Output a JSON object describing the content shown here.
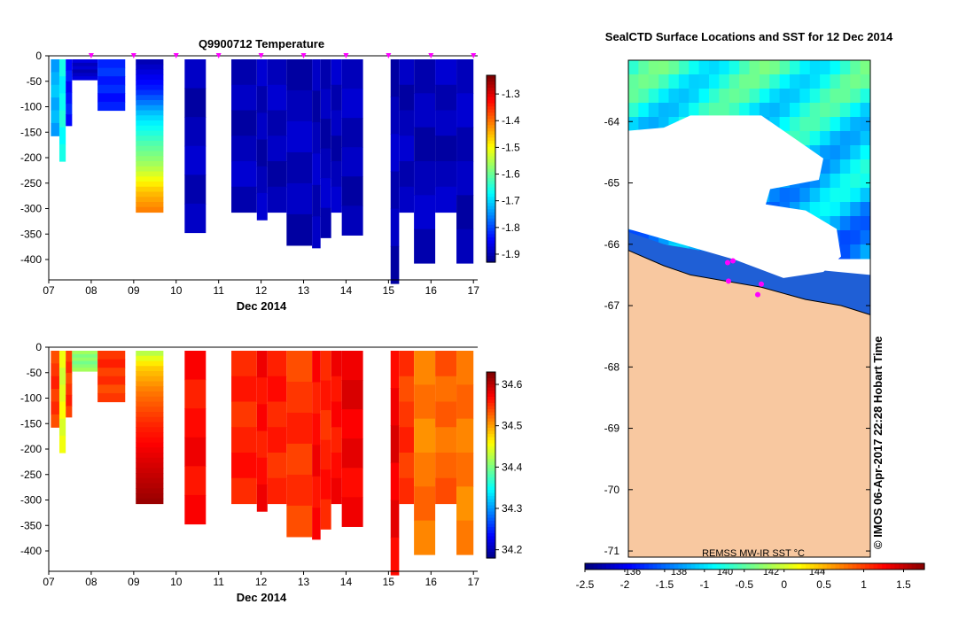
{
  "chart_data": [
    {
      "type": "heatmap",
      "id": "temperature",
      "title": "Q9900712  Temperature",
      "xlabel": "Dec 2014",
      "ylabel": "",
      "x_tick_labels": [
        "07",
        "08",
        "09",
        "10",
        "11",
        "12",
        "13",
        "14",
        "15",
        "16",
        "17"
      ],
      "xlim": [
        7,
        17.1
      ],
      "ylim": [
        -440,
        0
      ],
      "y_tick_values": [
        0,
        -50,
        -100,
        -150,
        -200,
        -250,
        -300,
        -350,
        -400
      ],
      "colorbar": {
        "min": -1.93,
        "max": -1.23,
        "ticks": [
          -1.3,
          -1.4,
          -1.5,
          -1.6,
          -1.7,
          -1.8,
          -1.9
        ]
      },
      "profile_marker_days": [
        8.0,
        9.0,
        10.0,
        11.0,
        12.0,
        13.0,
        14.0,
        15.0,
        16.0,
        17.0
      ],
      "profiles": [
        {
          "x0": 7.05,
          "x1": 7.25,
          "depth": 150,
          "value": -1.72
        },
        {
          "x0": 7.25,
          "x1": 7.4,
          "depth": 200,
          "value": -1.66
        },
        {
          "x0": 7.4,
          "x1": 7.55,
          "depth": 130,
          "value": -1.83
        },
        {
          "x0": 7.55,
          "x1": 8.15,
          "depth": 40,
          "value": -1.88
        },
        {
          "x0": 8.15,
          "x1": 8.8,
          "depth": 100,
          "value": -1.82
        },
        {
          "x0": 9.05,
          "x1": 9.7,
          "depth": 300,
          "gradient": [
            [
              0,
              -1.9
            ],
            [
              60,
              -1.82
            ],
            [
              110,
              -1.7
            ],
            [
              160,
              -1.62
            ],
            [
              210,
              -1.55
            ],
            [
              260,
              -1.45
            ],
            [
              300,
              -1.4
            ]
          ]
        },
        {
          "x0": 10.2,
          "x1": 10.7,
          "depth": 340,
          "value": -1.89
        },
        {
          "x0": 11.3,
          "x1": 11.9,
          "depth": 300,
          "value": -1.89
        },
        {
          "x0": 11.9,
          "x1": 12.15,
          "depth": 315,
          "value": -1.89
        },
        {
          "x0": 12.15,
          "x1": 12.6,
          "depth": 300,
          "value": -1.89
        },
        {
          "x0": 12.6,
          "x1": 13.2,
          "depth": 365,
          "value": -1.89
        },
        {
          "x0": 13.2,
          "x1": 13.4,
          "depth": 370,
          "value": -1.89
        },
        {
          "x0": 13.4,
          "x1": 13.65,
          "depth": 350,
          "value": -1.89
        },
        {
          "x0": 13.65,
          "x1": 13.9,
          "depth": 300,
          "value": -1.89
        },
        {
          "x0": 13.9,
          "x1": 14.4,
          "depth": 345,
          "value": -1.89
        },
        {
          "x0": 15.05,
          "x1": 15.25,
          "depth": 440,
          "value": -1.89
        },
        {
          "x0": 15.25,
          "x1": 15.6,
          "depth": 300,
          "value": -1.89
        },
        {
          "x0": 15.6,
          "x1": 16.1,
          "depth": 400,
          "value": -1.89
        },
        {
          "x0": 16.1,
          "x1": 16.6,
          "depth": 300,
          "value": -1.89
        },
        {
          "x0": 16.6,
          "x1": 17.0,
          "depth": 400,
          "value": -1.89
        }
      ]
    },
    {
      "type": "heatmap",
      "id": "salinity",
      "title": "",
      "xlabel": "Dec 2014",
      "ylabel": "",
      "x_tick_labels": [
        "07",
        "08",
        "09",
        "10",
        "11",
        "12",
        "13",
        "14",
        "15",
        "16",
        "17"
      ],
      "xlim": [
        7,
        17.1
      ],
      "ylim": [
        -440,
        0
      ],
      "y_tick_values": [
        0,
        -50,
        -100,
        -150,
        -200,
        -250,
        -300,
        -350,
        -400
      ],
      "colorbar": {
        "min": 34.18,
        "max": 34.63,
        "ticks": [
          34.6,
          34.5,
          34.4,
          34.3,
          34.2
        ]
      },
      "profiles": [
        {
          "x0": 7.05,
          "x1": 7.25,
          "depth": 150,
          "value": 34.55
        },
        {
          "x0": 7.25,
          "x1": 7.4,
          "depth": 200,
          "value": 34.45
        },
        {
          "x0": 7.4,
          "x1": 7.55,
          "depth": 130,
          "value": 34.55
        },
        {
          "x0": 7.55,
          "x1": 8.15,
          "depth": 40,
          "value": 34.41
        },
        {
          "x0": 8.15,
          "x1": 8.8,
          "depth": 100,
          "value": 34.55
        },
        {
          "x0": 9.05,
          "x1": 9.7,
          "depth": 300,
          "gradient": [
            [
              0,
              34.42
            ],
            [
              30,
              34.48
            ],
            [
              80,
              34.52
            ],
            [
              150,
              34.56
            ],
            [
              220,
              34.59
            ],
            [
              300,
              34.62
            ]
          ]
        },
        {
          "x0": 10.2,
          "x1": 10.7,
          "depth": 340,
          "value": 34.57
        },
        {
          "x0": 11.3,
          "x1": 11.9,
          "depth": 300,
          "value": 34.56
        },
        {
          "x0": 11.9,
          "x1": 12.15,
          "depth": 315,
          "value": 34.57
        },
        {
          "x0": 12.15,
          "x1": 12.6,
          "depth": 300,
          "value": 34.56
        },
        {
          "x0": 12.6,
          "x1": 13.2,
          "depth": 365,
          "value": 34.55
        },
        {
          "x0": 13.2,
          "x1": 13.4,
          "depth": 370,
          "value": 34.57
        },
        {
          "x0": 13.4,
          "x1": 13.65,
          "depth": 350,
          "value": 34.56
        },
        {
          "x0": 13.65,
          "x1": 13.9,
          "depth": 300,
          "value": 34.57
        },
        {
          "x0": 13.9,
          "x1": 14.4,
          "depth": 345,
          "value": 34.58
        },
        {
          "x0": 15.05,
          "x1": 15.25,
          "depth": 440,
          "value": 34.58
        },
        {
          "x0": 15.25,
          "x1": 15.6,
          "depth": 300,
          "value": 34.55
        },
        {
          "x0": 15.6,
          "x1": 16.1,
          "depth": 400,
          "value": 34.52
        },
        {
          "x0": 16.1,
          "x1": 16.6,
          "depth": 300,
          "value": 34.53
        },
        {
          "x0": 16.6,
          "x1": 17.0,
          "depth": 400,
          "value": 34.52
        }
      ]
    },
    {
      "type": "heatmap",
      "id": "sst_map",
      "title": "SealCTD Surface Locations and SST for 12 Dec 2014",
      "ylim": [
        -71.1,
        -63
      ]
    }
  ],
  "map": {
    "title": "SealCTD Surface Locations and SST for 12 Dec 2014",
    "lat_tick_labels": [
      "-64",
      "-65",
      "-66",
      "-67",
      "-68",
      "-69",
      "-70",
      "-71"
    ],
    "lon_tick_labels": [
      "136",
      "138",
      "140",
      "142",
      "144"
    ],
    "sst_label": "REMSS MW-IR SST °C",
    "sst_scale_labels": [
      "-2.5",
      "-2",
      "-1.5",
      "-1",
      "-0.5",
      "0",
      "0.5",
      "1",
      "1.5"
    ],
    "credit": "© IMOS 06-Apr-2017 22:28 Hobart Time",
    "land_color": "#f8c8a0"
  },
  "colors": {
    "jet": [
      "#00007f",
      "#0000ff",
      "#007fff",
      "#00ffff",
      "#7fff7f",
      "#ffff00",
      "#ff7f00",
      "#ff0000",
      "#7f0000"
    ],
    "marker": "#ff00ff"
  }
}
